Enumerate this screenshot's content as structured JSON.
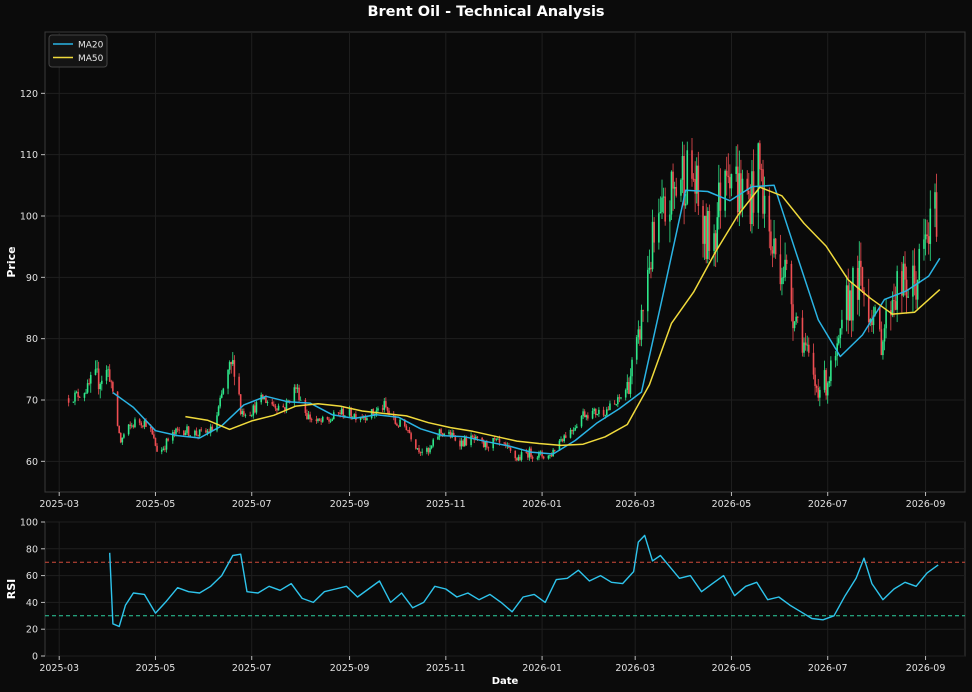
{
  "chart_data": {
    "title": "Brent Oil - Technical Analysis",
    "xlabel": "Date",
    "x_ticks": [
      "2025-03",
      "2025-05",
      "2025-07",
      "2025-09",
      "2025-11",
      "2026-01",
      "2026-03",
      "2026-05",
      "2026-07",
      "2026-09"
    ],
    "price_panel": {
      "type": "candlestick",
      "ylabel": "Price",
      "ylim": [
        55,
        130
      ],
      "y_ticks": [
        60,
        70,
        80,
        90,
        100,
        110,
        120
      ],
      "grid": true,
      "legend_position": "top-left",
      "colors": {
        "up": "#2ee88a",
        "down": "#ef4d52"
      },
      "close_series": [
        [
          "2025-03-07",
          70.3
        ],
        [
          "2025-03-14",
          71.0
        ],
        [
          "2025-03-21",
          72.3
        ],
        [
          "2025-03-28",
          74.0
        ],
        [
          "2025-04-02",
          74.7
        ],
        [
          "2025-04-05",
          68.5
        ],
        [
          "2025-04-09",
          63.2
        ],
        [
          "2025-04-12",
          64.8
        ],
        [
          "2025-04-19",
          66.6
        ],
        [
          "2025-04-26",
          66.3
        ],
        [
          "2025-05-03",
          61.2
        ],
        [
          "2025-05-10",
          63.8
        ],
        [
          "2025-05-17",
          65.3
        ],
        [
          "2025-05-24",
          64.7
        ],
        [
          "2025-05-31",
          64.4
        ],
        [
          "2025-06-07",
          65.3
        ],
        [
          "2025-06-14",
          72.8
        ],
        [
          "2025-06-21",
          76.6
        ],
        [
          "2025-06-24",
          68.1
        ],
        [
          "2025-07-01",
          68.2
        ],
        [
          "2025-07-08",
          70.3
        ],
        [
          "2025-07-15",
          69.2
        ],
        [
          "2025-07-22",
          68.8
        ],
        [
          "2025-07-29",
          72.2
        ],
        [
          "2025-08-05",
          67.5
        ],
        [
          "2025-08-12",
          66.3
        ],
        [
          "2025-08-19",
          66.6
        ],
        [
          "2025-08-26",
          68.0
        ],
        [
          "2025-09-02",
          67.6
        ],
        [
          "2025-09-09",
          67.5
        ],
        [
          "2025-09-16",
          67.8
        ],
        [
          "2025-09-23",
          69.0
        ],
        [
          "2025-09-30",
          66.2
        ],
        [
          "2025-10-07",
          65.7
        ],
        [
          "2025-10-14",
          62.3
        ],
        [
          "2025-10-21",
          61.3
        ],
        [
          "2025-10-28",
          64.8
        ],
        [
          "2025-11-04",
          64.2
        ],
        [
          "2025-11-11",
          63.1
        ],
        [
          "2025-11-18",
          63.6
        ],
        [
          "2025-11-25",
          62.5
        ],
        [
          "2025-12-02",
          63.2
        ],
        [
          "2025-12-09",
          62.1
        ],
        [
          "2025-12-16",
          60.4
        ],
        [
          "2025-12-23",
          61.4
        ],
        [
          "2025-12-30",
          61.0
        ],
        [
          "2026-01-06",
          60.9
        ],
        [
          "2026-01-13",
          63.8
        ],
        [
          "2026-01-20",
          65.2
        ],
        [
          "2026-01-27",
          67.8
        ],
        [
          "2026-02-03",
          67.9
        ],
        [
          "2026-02-10",
          68.3
        ],
        [
          "2026-02-17",
          69.3
        ],
        [
          "2026-02-24",
          72.1
        ],
        [
          "2026-03-03",
          79.4
        ],
        [
          "2026-03-10",
          93.1
        ],
        [
          "2026-03-17",
          98.3
        ],
        [
          "2026-03-24",
          103.2
        ],
        [
          "2026-03-31",
          107.1
        ],
        [
          "2026-04-07",
          106.2
        ],
        [
          "2026-04-14",
          95.7
        ],
        [
          "2026-04-21",
          98.4
        ],
        [
          "2026-04-28",
          110.9
        ],
        [
          "2026-05-05",
          104.4
        ],
        [
          "2026-05-12",
          102.8
        ],
        [
          "2026-05-19",
          107.5
        ],
        [
          "2026-05-26",
          94.8
        ],
        [
          "2026-06-02",
          92.8
        ],
        [
          "2026-06-09",
          85.6
        ],
        [
          "2026-06-16",
          79.2
        ],
        [
          "2026-06-23",
          72.3
        ],
        [
          "2026-06-30",
          72.8
        ],
        [
          "2026-07-07",
          77.2
        ],
        [
          "2026-07-14",
          86.4
        ],
        [
          "2026-07-21",
          89.1
        ],
        [
          "2026-07-28",
          85.2
        ],
        [
          "2026-08-04",
          79.6
        ],
        [
          "2026-08-11",
          87.7
        ],
        [
          "2026-08-18",
          88.3
        ],
        [
          "2026-08-25",
          88.5
        ],
        [
          "2026-09-01",
          95.4
        ],
        [
          "2026-09-08",
          100.9
        ]
      ],
      "series": [
        {
          "name": "MA20",
          "color": "#2ab4e4",
          "points": [
            [
              "2025-04-04",
              71.2
            ],
            [
              "2025-04-17",
              68.8
            ],
            [
              "2025-05-01",
              65.0
            ],
            [
              "2025-05-15",
              64.2
            ],
            [
              "2025-05-29",
              63.8
            ],
            [
              "2025-06-12",
              65.8
            ],
            [
              "2025-06-26",
              69.2
            ],
            [
              "2025-07-10",
              70.6
            ],
            [
              "2025-07-24",
              69.7
            ],
            [
              "2025-08-07",
              69.5
            ],
            [
              "2025-08-21",
              67.6
            ],
            [
              "2025-09-04",
              67.0
            ],
            [
              "2025-09-18",
              67.6
            ],
            [
              "2025-10-02",
              67.2
            ],
            [
              "2025-10-16",
              65.3
            ],
            [
              "2025-10-30",
              64.2
            ],
            [
              "2025-11-13",
              64.0
            ],
            [
              "2025-11-27",
              63.2
            ],
            [
              "2025-12-11",
              62.5
            ],
            [
              "2025-12-25",
              61.5
            ],
            [
              "2026-01-08",
              61.2
            ],
            [
              "2026-01-22",
              63.4
            ],
            [
              "2026-02-05",
              66.3
            ],
            [
              "2026-02-19",
              68.6
            ],
            [
              "2026-03-05",
              71.3
            ],
            [
              "2026-03-19",
              87.6
            ],
            [
              "2026-04-02",
              104.2
            ],
            [
              "2026-04-16",
              104.0
            ],
            [
              "2026-04-30",
              102.5
            ],
            [
              "2026-05-14",
              104.8
            ],
            [
              "2026-05-28",
              105.0
            ],
            [
              "2026-06-11",
              94.0
            ],
            [
              "2026-06-25",
              83.1
            ],
            [
              "2026-07-09",
              77.1
            ],
            [
              "2026-07-23",
              80.6
            ],
            [
              "2026-08-06",
              86.4
            ],
            [
              "2026-08-20",
              87.8
            ],
            [
              "2026-09-03",
              90.2
            ],
            [
              "2026-09-10",
              93.1
            ]
          ]
        },
        {
          "name": "MA50",
          "color": "#f0da3c",
          "points": [
            [
              "2025-05-20",
              67.3
            ],
            [
              "2025-06-03",
              66.7
            ],
            [
              "2025-06-17",
              65.2
            ],
            [
              "2025-07-01",
              66.6
            ],
            [
              "2025-07-15",
              67.5
            ],
            [
              "2025-07-29",
              69.0
            ],
            [
              "2025-08-12",
              69.4
            ],
            [
              "2025-08-26",
              69.0
            ],
            [
              "2025-09-09",
              68.2
            ],
            [
              "2025-09-23",
              67.8
            ],
            [
              "2025-10-07",
              67.4
            ],
            [
              "2025-10-21",
              66.3
            ],
            [
              "2025-11-04",
              65.5
            ],
            [
              "2025-11-18",
              64.9
            ],
            [
              "2025-12-02",
              64.1
            ],
            [
              "2025-12-16",
              63.3
            ],
            [
              "2025-12-30",
              62.9
            ],
            [
              "2026-01-13",
              62.6
            ],
            [
              "2026-01-27",
              62.8
            ],
            [
              "2026-02-10",
              64.0
            ],
            [
              "2026-02-24",
              66.0
            ],
            [
              "2026-03-10",
              72.5
            ],
            [
              "2026-03-24",
              82.5
            ],
            [
              "2026-04-07",
              87.6
            ],
            [
              "2026-04-21",
              94.2
            ],
            [
              "2026-05-05",
              100.1
            ],
            [
              "2026-05-19",
              104.7
            ],
            [
              "2026-06-02",
              103.3
            ],
            [
              "2026-06-16",
              98.8
            ],
            [
              "2026-06-30",
              95.1
            ],
            [
              "2026-07-14",
              89.6
            ],
            [
              "2026-07-28",
              86.6
            ],
            [
              "2026-08-11",
              84.0
            ],
            [
              "2026-08-25",
              84.3
            ],
            [
              "2026-09-10",
              88.0
            ]
          ]
        }
      ]
    },
    "rsi_panel": {
      "type": "line",
      "ylabel": "RSI",
      "ylim": [
        0,
        100
      ],
      "y_ticks": [
        0,
        20,
        40,
        60,
        80,
        100
      ],
      "grid": true,
      "thresholds": [
        {
          "value": 70,
          "color": "#d04a3a"
        },
        {
          "value": 30,
          "color": "#2cd0a0"
        }
      ],
      "series": [
        {
          "name": "RSI",
          "color": "#2ec4ec",
          "points": [
            [
              "2025-04-02",
              77
            ],
            [
              "2025-04-04",
              24
            ],
            [
              "2025-04-08",
              22
            ],
            [
              "2025-04-12",
              38
            ],
            [
              "2025-04-17",
              47
            ],
            [
              "2025-04-24",
              46
            ],
            [
              "2025-05-01",
              32
            ],
            [
              "2025-05-08",
              41
            ],
            [
              "2025-05-15",
              51
            ],
            [
              "2025-05-22",
              48
            ],
            [
              "2025-05-29",
              47
            ],
            [
              "2025-06-05",
              52
            ],
            [
              "2025-06-12",
              60
            ],
            [
              "2025-06-19",
              75
            ],
            [
              "2025-06-24",
              76
            ],
            [
              "2025-06-28",
              48
            ],
            [
              "2025-07-05",
              47
            ],
            [
              "2025-07-12",
              52
            ],
            [
              "2025-07-19",
              49
            ],
            [
              "2025-07-26",
              54
            ],
            [
              "2025-08-02",
              43
            ],
            [
              "2025-08-09",
              40
            ],
            [
              "2025-08-16",
              48
            ],
            [
              "2025-08-23",
              50
            ],
            [
              "2025-08-30",
              52
            ],
            [
              "2025-09-06",
              44
            ],
            [
              "2025-09-13",
              50
            ],
            [
              "2025-09-20",
              56
            ],
            [
              "2025-09-27",
              40
            ],
            [
              "2025-10-04",
              47
            ],
            [
              "2025-10-11",
              36
            ],
            [
              "2025-10-18",
              40
            ],
            [
              "2025-10-25",
              52
            ],
            [
              "2025-11-01",
              50
            ],
            [
              "2025-11-08",
              44
            ],
            [
              "2025-11-15",
              47
            ],
            [
              "2025-11-22",
              42
            ],
            [
              "2025-11-29",
              46
            ],
            [
              "2025-12-06",
              40
            ],
            [
              "2025-12-13",
              33
            ],
            [
              "2025-12-20",
              44
            ],
            [
              "2025-12-27",
              46
            ],
            [
              "2026-01-03",
              40
            ],
            [
              "2026-01-10",
              57
            ],
            [
              "2026-01-17",
              58
            ],
            [
              "2026-01-24",
              64
            ],
            [
              "2026-01-31",
              56
            ],
            [
              "2026-02-07",
              60
            ],
            [
              "2026-02-14",
              55
            ],
            [
              "2026-02-21",
              54
            ],
            [
              "2026-02-28",
              63
            ],
            [
              "2026-03-03",
              85
            ],
            [
              "2026-03-07",
              90
            ],
            [
              "2026-03-12",
              71
            ],
            [
              "2026-03-17",
              75
            ],
            [
              "2026-03-22",
              68
            ],
            [
              "2026-03-29",
              58
            ],
            [
              "2026-04-05",
              60
            ],
            [
              "2026-04-12",
              48
            ],
            [
              "2026-04-19",
              54
            ],
            [
              "2026-04-26",
              60
            ],
            [
              "2026-05-03",
              45
            ],
            [
              "2026-05-10",
              52
            ],
            [
              "2026-05-17",
              55
            ],
            [
              "2026-05-24",
              42
            ],
            [
              "2026-05-31",
              44
            ],
            [
              "2026-06-07",
              38
            ],
            [
              "2026-06-14",
              33
            ],
            [
              "2026-06-21",
              28
            ],
            [
              "2026-06-28",
              27
            ],
            [
              "2026-07-05",
              30
            ],
            [
              "2026-07-12",
              45
            ],
            [
              "2026-07-19",
              58
            ],
            [
              "2026-07-24",
              73
            ],
            [
              "2026-07-29",
              54
            ],
            [
              "2026-08-05",
              42
            ],
            [
              "2026-08-12",
              50
            ],
            [
              "2026-08-19",
              55
            ],
            [
              "2026-08-26",
              52
            ],
            [
              "2026-09-02",
              62
            ],
            [
              "2026-09-09",
              68
            ]
          ]
        }
      ]
    }
  }
}
